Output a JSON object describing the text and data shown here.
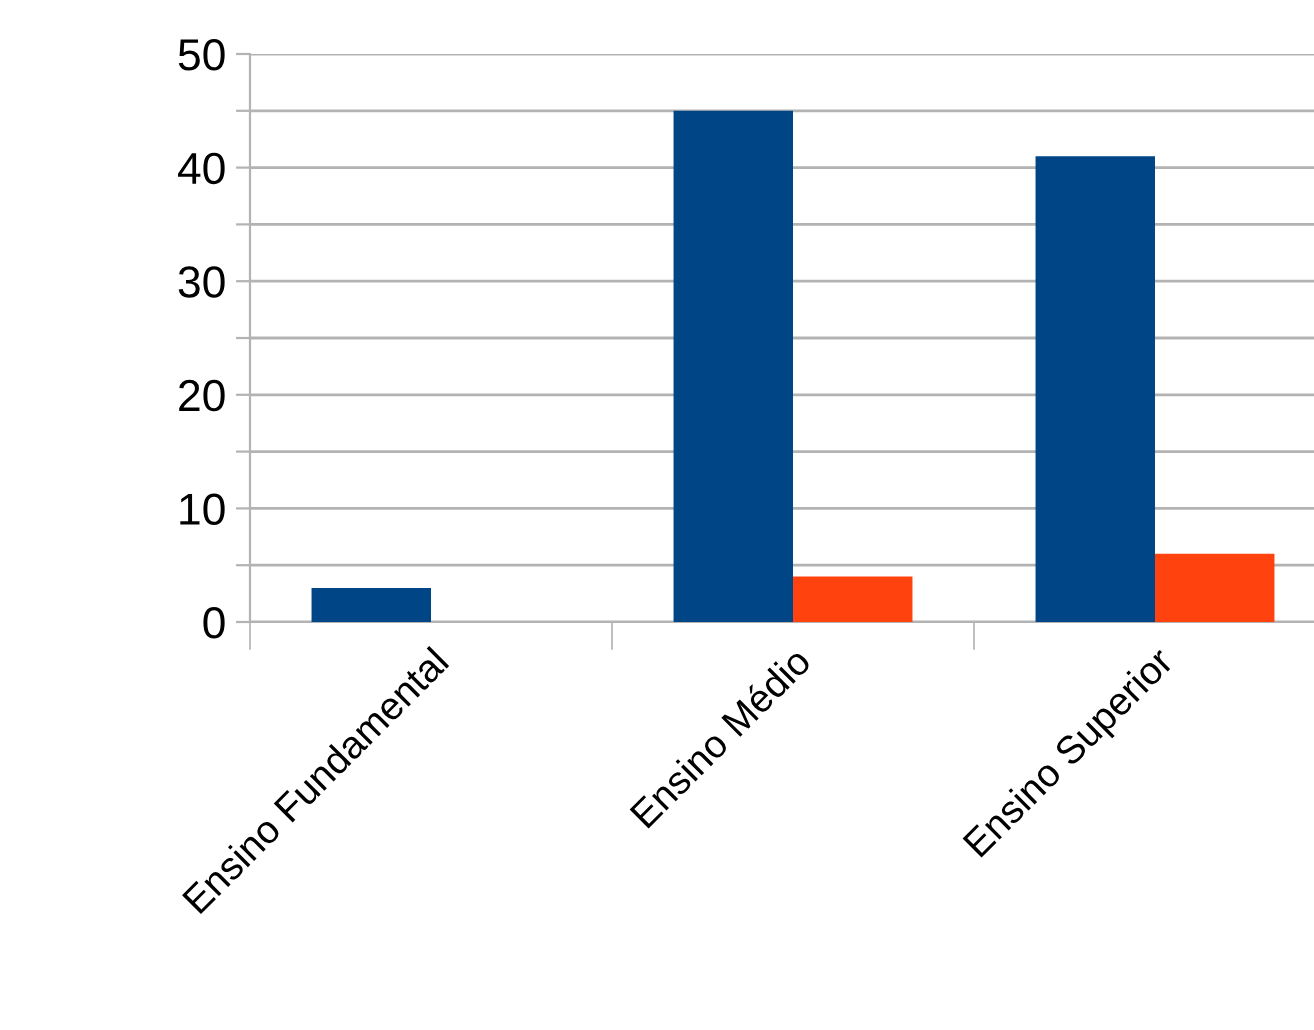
{
  "chart_data": {
    "type": "bar",
    "categories": [
      "Ensino Fundamental",
      "Ensino Médio",
      "Ensino Superior"
    ],
    "series": [
      {
        "color": "#004586",
        "values": [
          3,
          45,
          41
        ]
      },
      {
        "color": "#ff420e",
        "values": [
          null,
          4,
          6
        ]
      }
    ],
    "ylim": [
      0,
      50
    ],
    "yticks": [
      0,
      {
        "value": 5,
        "label": null
      },
      10,
      {
        "value": 15,
        "label": null
      },
      20,
      {
        "value": 25,
        "label": null
      },
      30,
      {
        "value": 35,
        "label": null
      },
      40,
      {
        "value": 45,
        "label": null
      },
      50
    ],
    "grid": "y",
    "legend": false
  }
}
